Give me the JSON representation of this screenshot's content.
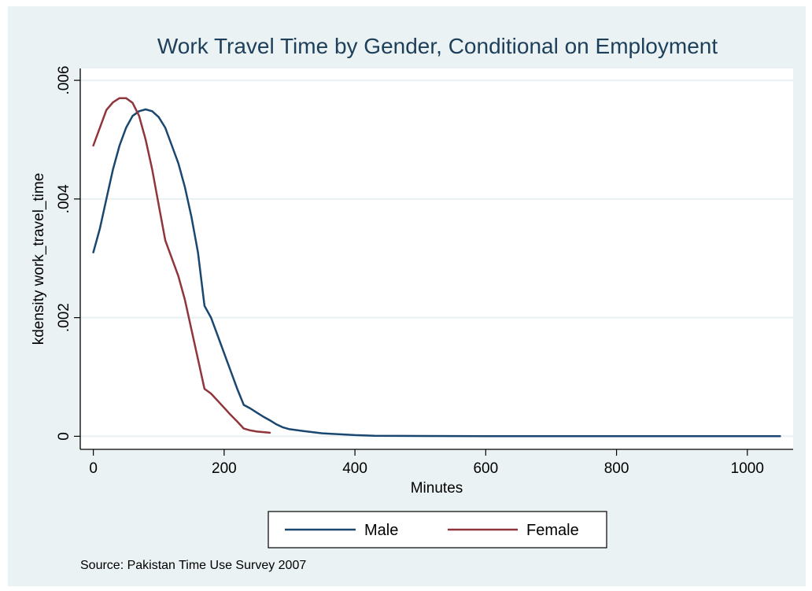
{
  "chart_data": {
    "type": "line",
    "title": "Work Travel Time by Gender, Conditional on Employment",
    "xlabel": "Minutes",
    "ylabel": "kdensity work_travel_time",
    "note": "Source: Pakistan Time Use Survey 2007",
    "xlim": [
      -20,
      1070
    ],
    "ylim": [
      -0.00022,
      0.0062
    ],
    "x_ticks": [
      0,
      200,
      400,
      600,
      800,
      1000
    ],
    "x_tick_labels": [
      "0",
      "200",
      "400",
      "600",
      "800",
      "1000"
    ],
    "y_ticks": [
      0,
      0.002,
      0.004,
      0.006
    ],
    "y_tick_labels": [
      "0",
      ".002",
      ".004",
      ".006"
    ],
    "grid": true,
    "legend_position": "bottom",
    "series": [
      {
        "name": "Male",
        "color": "#1a476f",
        "x": [
          0,
          10,
          20,
          30,
          40,
          50,
          60,
          70,
          80,
          90,
          100,
          110,
          120,
          130,
          140,
          150,
          160,
          170,
          180,
          190,
          200,
          210,
          220,
          230,
          240,
          250,
          260,
          270,
          280,
          290,
          300,
          320,
          350,
          400,
          430,
          500,
          600,
          700,
          800,
          900,
          1000,
          1050
        ],
        "y": [
          0.0031,
          0.0035,
          0.004,
          0.0045,
          0.0049,
          0.0052,
          0.0054,
          0.00548,
          0.00551,
          0.00548,
          0.00538,
          0.0052,
          0.0049,
          0.0046,
          0.0042,
          0.0037,
          0.0031,
          0.0022,
          0.002,
          0.0017,
          0.0014,
          0.0011,
          0.0008,
          0.00053,
          0.00047,
          0.0004,
          0.00033,
          0.00027,
          0.0002,
          0.00015,
          0.00012,
          9e-05,
          5e-05,
          2e-05,
          1e-05,
          5e-06,
          3e-06,
          2e-06,
          2e-06,
          2e-06,
          1e-06,
          1e-06
        ]
      },
      {
        "name": "Female",
        "color": "#90353b",
        "x": [
          0,
          10,
          20,
          30,
          40,
          50,
          60,
          70,
          80,
          90,
          100,
          110,
          120,
          130,
          140,
          150,
          160,
          170,
          180,
          190,
          200,
          210,
          220,
          230,
          240,
          250,
          260,
          270
        ],
        "y": [
          0.0049,
          0.0052,
          0.0055,
          0.00563,
          0.0057,
          0.0057,
          0.00562,
          0.0054,
          0.005,
          0.0045,
          0.0039,
          0.0033,
          0.003,
          0.0027,
          0.0023,
          0.0018,
          0.0013,
          0.0008,
          0.00072,
          0.0006,
          0.00048,
          0.00036,
          0.00025,
          0.00013,
          0.0001,
          8e-05,
          7e-05,
          6e-05
        ]
      }
    ]
  }
}
